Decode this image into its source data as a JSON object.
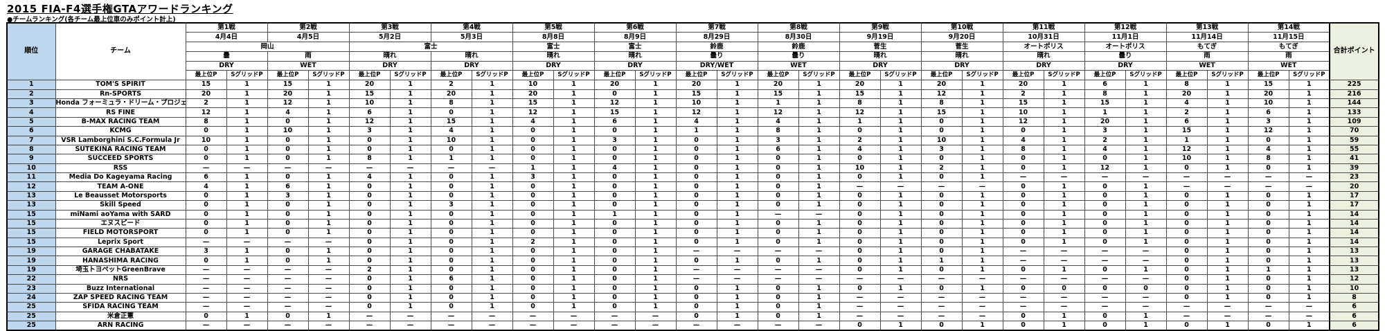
{
  "title": "2015 FIA-F4選手権GTAアワードランキング",
  "subtitle": "●チームランキング(各チーム最上位車のみポイント計上)",
  "colors": {
    "rank_bg": "#BDD7EE",
    "total_bg": "#EBF1DE",
    "border": "#4a4a4a"
  },
  "table": {
    "rank_header": "順位",
    "team_header": "チーム",
    "total_header": "合計ポイント",
    "point_sub_header": "最上位P",
    "sgrid_sub_header": "SグリッドP",
    "rounds": [
      {
        "name": "第1戦",
        "date": "4月4日",
        "weather": "曇",
        "track": "DRY"
      },
      {
        "name": "第2戦",
        "date": "4月5日",
        "weather": "雨",
        "track": "WET"
      },
      {
        "name": "第3戦",
        "date": "5月2日",
        "weather": "晴れ",
        "track": "DRY"
      },
      {
        "name": "第4戦",
        "date": "5月3日",
        "weather": "晴れ",
        "track": "DRY"
      },
      {
        "name": "第5戦",
        "date": "8月8日",
        "weather": "晴れ",
        "track": "DRY"
      },
      {
        "name": "第6戦",
        "date": "8月9日",
        "weather": "晴れ",
        "track": "DRY"
      },
      {
        "name": "第7戦",
        "date": "8月29日",
        "weather": "曇り",
        "track": "DRY/WET"
      },
      {
        "name": "第8戦",
        "date": "8月30日",
        "weather": "曇り",
        "track": "WET"
      },
      {
        "name": "第9戦",
        "date": "9月19日",
        "weather": "晴れ",
        "track": "DRY"
      },
      {
        "name": "第10戦",
        "date": "9月20日",
        "weather": "晴れ",
        "track": "DRY"
      },
      {
        "name": "第11戦",
        "date": "10月31日",
        "weather": "晴れ",
        "track": "DRY"
      },
      {
        "name": "第12戦",
        "date": "11月1日",
        "weather": "曇り",
        "track": "DRY"
      },
      {
        "name": "第13戦",
        "date": "11月14日",
        "weather": "雨",
        "track": "WET"
      },
      {
        "name": "第14戦",
        "date": "11月15日",
        "weather": "雨",
        "track": "WET"
      }
    ],
    "venues": [
      {
        "label": "岡山",
        "round_span": 2
      },
      {
        "label": "富士",
        "round_span": 2
      },
      {
        "label": "富士",
        "round_span": 1
      },
      {
        "label": "富士",
        "round_span": 1
      },
      {
        "label": "鈴鹿",
        "round_span": 1
      },
      {
        "label": "鈴鹿",
        "round_span": 1
      },
      {
        "label": "菅生",
        "round_span": 1
      },
      {
        "label": "菅生",
        "round_span": 1
      },
      {
        "label": "オートポリス",
        "round_span": 1
      },
      {
        "label": "オートポリス",
        "round_span": 1
      },
      {
        "label": "もてぎ",
        "round_span": 1
      },
      {
        "label": "もてぎ",
        "round_span": 1
      }
    ],
    "rows": [
      {
        "rank": "1",
        "team": "TOM'S SPIRIT",
        "cells": [
          "15",
          "1",
          "15",
          "1",
          "20",
          "1",
          "2",
          "1",
          "10",
          "1",
          "20",
          "1",
          "20",
          "1",
          "20",
          "1",
          "20",
          "1",
          "20",
          "1",
          "20",
          "1",
          "6",
          "1",
          "8",
          "1",
          "15",
          "1"
        ],
        "total": "225"
      },
      {
        "rank": "2",
        "team": "Rn-SPORTS",
        "cells": [
          "20",
          "1",
          "20",
          "1",
          "15",
          "1",
          "20",
          "1",
          "20",
          "1",
          "0",
          "1",
          "15",
          "1",
          "15",
          "1",
          "15",
          "1",
          "12",
          "1",
          "2",
          "1",
          "8",
          "1",
          "20",
          "1",
          "20",
          "1"
        ],
        "total": "216"
      },
      {
        "rank": "3",
        "team": "Honda フォーミュラ・ドリーム・プロジェクト",
        "cells": [
          "2",
          "1",
          "12",
          "1",
          "10",
          "1",
          "8",
          "1",
          "15",
          "1",
          "12",
          "1",
          "10",
          "1",
          "1",
          "1",
          "8",
          "1",
          "8",
          "1",
          "15",
          "1",
          "15",
          "1",
          "4",
          "1",
          "10",
          "1"
        ],
        "total": "144"
      },
      {
        "rank": "4",
        "team": "RS FINE",
        "cells": [
          "12",
          "1",
          "4",
          "1",
          "6",
          "1",
          "0",
          "1",
          "12",
          "1",
          "15",
          "1",
          "12",
          "1",
          "12",
          "1",
          "12",
          "1",
          "15",
          "1",
          "10",
          "1",
          "1",
          "1",
          "2",
          "1",
          "6",
          "1"
        ],
        "total": "133"
      },
      {
        "rank": "5",
        "team": "B-MAX RACING TEAM",
        "cells": [
          "8",
          "1",
          "0",
          "1",
          "12",
          "1",
          "15",
          "1",
          "4",
          "1",
          "6",
          "1",
          "4",
          "1",
          "4",
          "1",
          "1",
          "1",
          "0",
          "1",
          "12",
          "1",
          "20",
          "1",
          "6",
          "1",
          "3",
          "1"
        ],
        "total": "109"
      },
      {
        "rank": "6",
        "team": "KCMG",
        "cells": [
          "0",
          "1",
          "10",
          "1",
          "3",
          "1",
          "4",
          "1",
          "0",
          "1",
          "0",
          "1",
          "1",
          "1",
          "8",
          "1",
          "0",
          "1",
          "0",
          "1",
          "0",
          "1",
          "3",
          "1",
          "15",
          "1",
          "12",
          "1"
        ],
        "total": "70"
      },
      {
        "rank": "7",
        "team": "VSR Lamborghini S.C.Formula Jr",
        "cells": [
          "10",
          "1",
          "0",
          "1",
          "0",
          "1",
          "10",
          "1",
          "0",
          "1",
          "3",
          "1",
          "0",
          "1",
          "3",
          "1",
          "2",
          "1",
          "10",
          "1",
          "4",
          "1",
          "2",
          "1",
          "1",
          "1",
          "0",
          "1"
        ],
        "total": "59"
      },
      {
        "rank": "8",
        "team": "SUTEKINA RACING TEAM",
        "cells": [
          "0",
          "1",
          "0",
          "1",
          "0",
          "1",
          "0",
          "1",
          "0",
          "1",
          "0",
          "1",
          "0",
          "1",
          "6",
          "1",
          "4",
          "1",
          "3",
          "1",
          "8",
          "1",
          "4",
          "1",
          "12",
          "1",
          "4",
          "1"
        ],
        "total": "55"
      },
      {
        "rank": "9",
        "team": "SUCCEED SPORTS",
        "cells": [
          "0",
          "1",
          "0",
          "1",
          "8",
          "1",
          "1",
          "1",
          "0",
          "1",
          "0",
          "1",
          "0",
          "1",
          "0",
          "1",
          "0",
          "1",
          "0",
          "1",
          "0",
          "1",
          "0",
          "1",
          "10",
          "1",
          "8",
          "1"
        ],
        "total": "41"
      },
      {
        "rank": "10",
        "team": "RSS",
        "cells": [
          "—",
          "—",
          "—",
          "—",
          "—",
          "—",
          "—",
          "—",
          "1",
          "1",
          "4",
          "1",
          "0",
          "1",
          "0",
          "1",
          "10",
          "1",
          "2",
          "1",
          "0",
          "1",
          "12",
          "1",
          "0",
          "1",
          "0",
          "1"
        ],
        "total": "39"
      },
      {
        "rank": "11",
        "team": "Media Do Kageyama Racing",
        "cells": [
          "6",
          "1",
          "0",
          "1",
          "4",
          "1",
          "0",
          "1",
          "3",
          "1",
          "0",
          "1",
          "0",
          "1",
          "0",
          "1",
          "0",
          "1",
          "0",
          "1",
          "—",
          "—",
          "—",
          "—",
          "—",
          "—",
          "—",
          "—"
        ],
        "total": "23"
      },
      {
        "rank": "12",
        "team": "TEAM A-ONE",
        "cells": [
          "4",
          "1",
          "6",
          "1",
          "0",
          "1",
          "0",
          "1",
          "0",
          "1",
          "0",
          "1",
          "0",
          "1",
          "0",
          "1",
          "—",
          "—",
          "—",
          "—",
          "0",
          "1",
          "0",
          "1",
          "—",
          "—",
          "—",
          "—"
        ],
        "total": "20"
      },
      {
        "rank": "13",
        "team": "Le Beausset Motorsports",
        "cells": [
          "0",
          "1",
          "3",
          "1",
          "0",
          "1",
          "0",
          "1",
          "0",
          "1",
          "0",
          "1",
          "0",
          "1",
          "0",
          "1",
          "0",
          "1",
          "0",
          "1",
          "0",
          "1",
          "0",
          "1",
          "0",
          "1",
          "0",
          "1"
        ],
        "total": "17"
      },
      {
        "rank": "13",
        "team": "Skill Speed",
        "cells": [
          "0",
          "1",
          "0",
          "1",
          "0",
          "1",
          "3",
          "1",
          "0",
          "1",
          "0",
          "1",
          "0",
          "1",
          "0",
          "1",
          "0",
          "1",
          "0",
          "1",
          "0",
          "1",
          "0",
          "1",
          "0",
          "1",
          "0",
          "1"
        ],
        "total": "17"
      },
      {
        "rank": "15",
        "team": "miNami aoYama with SARD",
        "cells": [
          "0",
          "1",
          "0",
          "1",
          "0",
          "1",
          "0",
          "1",
          "0",
          "1",
          "1",
          "1",
          "0",
          "1",
          "—",
          "—",
          "0",
          "1",
          "0",
          "1",
          "0",
          "1",
          "0",
          "1",
          "0",
          "1",
          "0",
          "1"
        ],
        "total": "14"
      },
      {
        "rank": "15",
        "team": "エヌスピード",
        "cells": [
          "0",
          "1",
          "0",
          "1",
          "0",
          "1",
          "0",
          "1",
          "0",
          "1",
          "0",
          "1",
          "0",
          "1",
          "0",
          "1",
          "0",
          "1",
          "0",
          "1",
          "0",
          "1",
          "0",
          "1",
          "0",
          "1",
          "0",
          "1"
        ],
        "total": "14"
      },
      {
        "rank": "15",
        "team": "FIELD MOTORSPORT",
        "cells": [
          "0",
          "1",
          "0",
          "1",
          "0",
          "1",
          "0",
          "1",
          "0",
          "1",
          "0",
          "1",
          "0",
          "1",
          "0",
          "1",
          "0",
          "1",
          "0",
          "1",
          "0",
          "1",
          "0",
          "1",
          "0",
          "1",
          "0",
          "1"
        ],
        "total": "14"
      },
      {
        "rank": "15",
        "team": "Leprix Sport",
        "cells": [
          "—",
          "—",
          "—",
          "—",
          "0",
          "1",
          "0",
          "1",
          "2",
          "1",
          "0",
          "1",
          "0",
          "1",
          "0",
          "1",
          "0",
          "1",
          "0",
          "1",
          "0",
          "1",
          "0",
          "1",
          "0",
          "1",
          "0",
          "1"
        ],
        "total": "14"
      },
      {
        "rank": "19",
        "team": "GARAGE CHABATAKE",
        "cells": [
          "3",
          "1",
          "0",
          "1",
          "0",
          "1",
          "0",
          "1",
          "0",
          "1",
          "0",
          "1",
          "—",
          "—",
          "—",
          "—",
          "0",
          "1",
          "0",
          "1",
          "—",
          "—",
          "—",
          "—",
          "0",
          "1",
          "0",
          "1"
        ],
        "total": "13"
      },
      {
        "rank": "19",
        "team": "HANASHIMA RACING",
        "cells": [
          "0",
          "1",
          "0",
          "1",
          "0",
          "1",
          "0",
          "1",
          "0",
          "1",
          "0",
          "1",
          "0",
          "1",
          "0",
          "1",
          "0",
          "1",
          "1",
          "1",
          "—",
          "—",
          "—",
          "—",
          "0",
          "1",
          "0",
          "1"
        ],
        "total": "13"
      },
      {
        "rank": "19",
        "team": "埼玉トヨペットGreenBrave",
        "cells": [
          "—",
          "—",
          "—",
          "—",
          "2",
          "1",
          "0",
          "1",
          "0",
          "1",
          "0",
          "1",
          "—",
          "—",
          "—",
          "—",
          "0",
          "1",
          "0",
          "1",
          "0",
          "1",
          "0",
          "1",
          "0",
          "1",
          "1",
          "1"
        ],
        "total": "13"
      },
      {
        "rank": "22",
        "team": "NRS",
        "cells": [
          "—",
          "—",
          "—",
          "—",
          "0",
          "1",
          "6",
          "1",
          "0",
          "1",
          "0",
          "1",
          "—",
          "—",
          "—",
          "—",
          "—",
          "—",
          "—",
          "—",
          "—",
          "—",
          "—",
          "—",
          "0",
          "1",
          "0",
          "1"
        ],
        "total": "12"
      },
      {
        "rank": "23",
        "team": "Buzz International",
        "cells": [
          "—",
          "—",
          "—",
          "—",
          "0",
          "1",
          "0",
          "1",
          "0",
          "1",
          "0",
          "1",
          "0",
          "1",
          "0",
          "1",
          "0",
          "1",
          "0",
          "1",
          "0",
          "0",
          "0",
          "0",
          "0",
          "1",
          "0",
          "1"
        ],
        "total": "10"
      },
      {
        "rank": "24",
        "team": "ZAP SPEED RACING TEAM",
        "cells": [
          "—",
          "—",
          "—",
          "—",
          "0",
          "1",
          "0",
          "1",
          "0",
          "1",
          "0",
          "1",
          "0",
          "1",
          "0",
          "1",
          "—",
          "—",
          "—",
          "—",
          "—",
          "—",
          "—",
          "—",
          "0",
          "1",
          "0",
          "1"
        ],
        "total": "8"
      },
      {
        "rank": "25",
        "team": "SFIDA RACING TEAM",
        "cells": [
          "—",
          "—",
          "—",
          "—",
          "0",
          "1",
          "0",
          "1",
          "0",
          "1",
          "0",
          "1",
          "0",
          "1",
          "0",
          "1",
          "—",
          "—",
          "—",
          "—",
          "—",
          "—",
          "—",
          "—",
          "—",
          "—",
          "—",
          "—"
        ],
        "total": "6"
      },
      {
        "rank": "25",
        "team": "米倉正憲",
        "cells": [
          "0",
          "1",
          "0",
          "1",
          "—",
          "—",
          "—",
          "—",
          "—",
          "—",
          "—",
          "—",
          "0",
          "1",
          "0",
          "1",
          "—",
          "—",
          "—",
          "—",
          "0",
          "1",
          "0",
          "1",
          "—",
          "—",
          "—",
          "—"
        ],
        "total": "6"
      },
      {
        "rank": "25",
        "team": "ARN RACING",
        "cells": [
          "—",
          "—",
          "—",
          "—",
          "—",
          "—",
          "—",
          "—",
          "—",
          "—",
          "—",
          "—",
          "—",
          "—",
          "—",
          "—",
          "0",
          "1",
          "0",
          "1",
          "0",
          "1",
          "0",
          "1",
          "0",
          "1",
          "0",
          "1"
        ],
        "total": "6"
      }
    ]
  }
}
